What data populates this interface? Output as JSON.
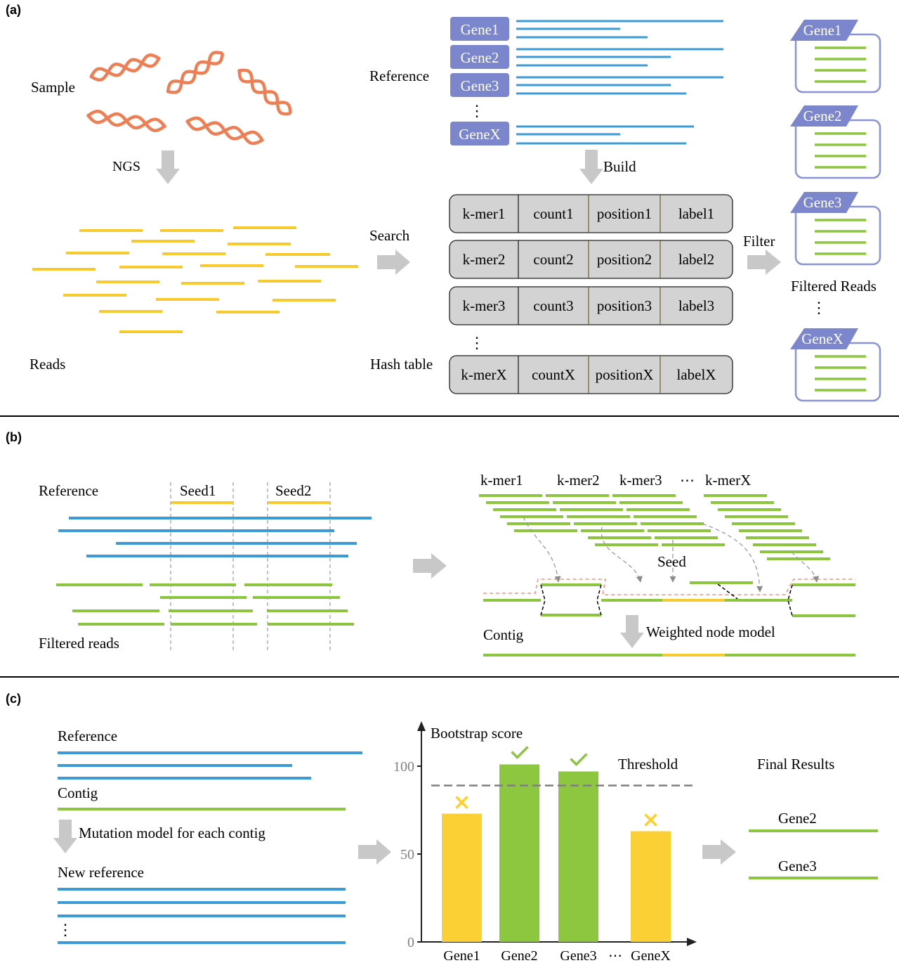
{
  "colors": {
    "dna": "#EE7F55",
    "read_yellow": "#F9C930",
    "ref_blue": "#3A9BD6",
    "green": "#8CC63E",
    "gene_box": "#7B86CC",
    "gene_box_border": "#8A93D4",
    "hash_fill": "#D3D3D3",
    "arrow": "#C8C8C8",
    "dashed_red": "#F07F62",
    "threshold": "#7F7F7F",
    "bar_yellow": "#FBD035",
    "bar_green": "#8DC63F"
  },
  "panel_a": {
    "label": "(a)",
    "sample_label": "Sample",
    "ngs_label": "NGS",
    "reads_label": "Reads",
    "reference_label": "Reference",
    "reference_genes": [
      "Gene1",
      "Gene2",
      "Gene3",
      "GeneX"
    ],
    "ellipsis": "⋮",
    "build_label": "Build",
    "search_label": "Search",
    "hash_table_label": "Hash table",
    "hash_rows": [
      [
        "k-mer1",
        "count1",
        "position1",
        "label1"
      ],
      [
        "k-mer2",
        "count2",
        "position2",
        "label2"
      ],
      [
        "k-mer3",
        "count3",
        "position3",
        "label3"
      ],
      [
        "k-merX",
        "countX",
        "positionX",
        "labelX"
      ]
    ],
    "filter_label": "Filter",
    "filtered_reads_label": "Filtered Reads",
    "filtered_genes": [
      "Gene1",
      "Gene2",
      "Gene3",
      "GeneX"
    ]
  },
  "panel_b": {
    "label": "(b)",
    "reference_label": "Reference",
    "seed1_label": "Seed1",
    "seed2_label": "Seed2",
    "filtered_reads_label": "Filtered reads",
    "kmer_labels": [
      "k-mer1",
      "k-mer2",
      "k-mer3",
      "⋯",
      "k-merX"
    ],
    "seed_label": "Seed",
    "contig_label": "Contig",
    "weighted_label": "Weighted node model"
  },
  "panel_c": {
    "label": "(c)",
    "reference_label": "Reference",
    "contig_label": "Contig",
    "mutation_label": "Mutation model  for each contig",
    "new_reference_label": "New reference",
    "ellipsis": "⋮",
    "final_results_label": "Final Results",
    "final_genes": [
      "Gene2",
      "Gene3"
    ]
  },
  "chart_data": {
    "type": "bar",
    "title": "Bootstrap score",
    "categories": [
      "Gene1",
      "Gene2",
      "Gene3",
      "GeneX"
    ],
    "values": [
      73,
      101,
      97,
      63
    ],
    "passed": [
      false,
      true,
      true,
      false
    ],
    "threshold": 89,
    "threshold_label": "Threshold",
    "x_gap_label": "⋯",
    "y_ticks": [
      0,
      50,
      100
    ],
    "ylim": [
      0,
      115
    ]
  }
}
